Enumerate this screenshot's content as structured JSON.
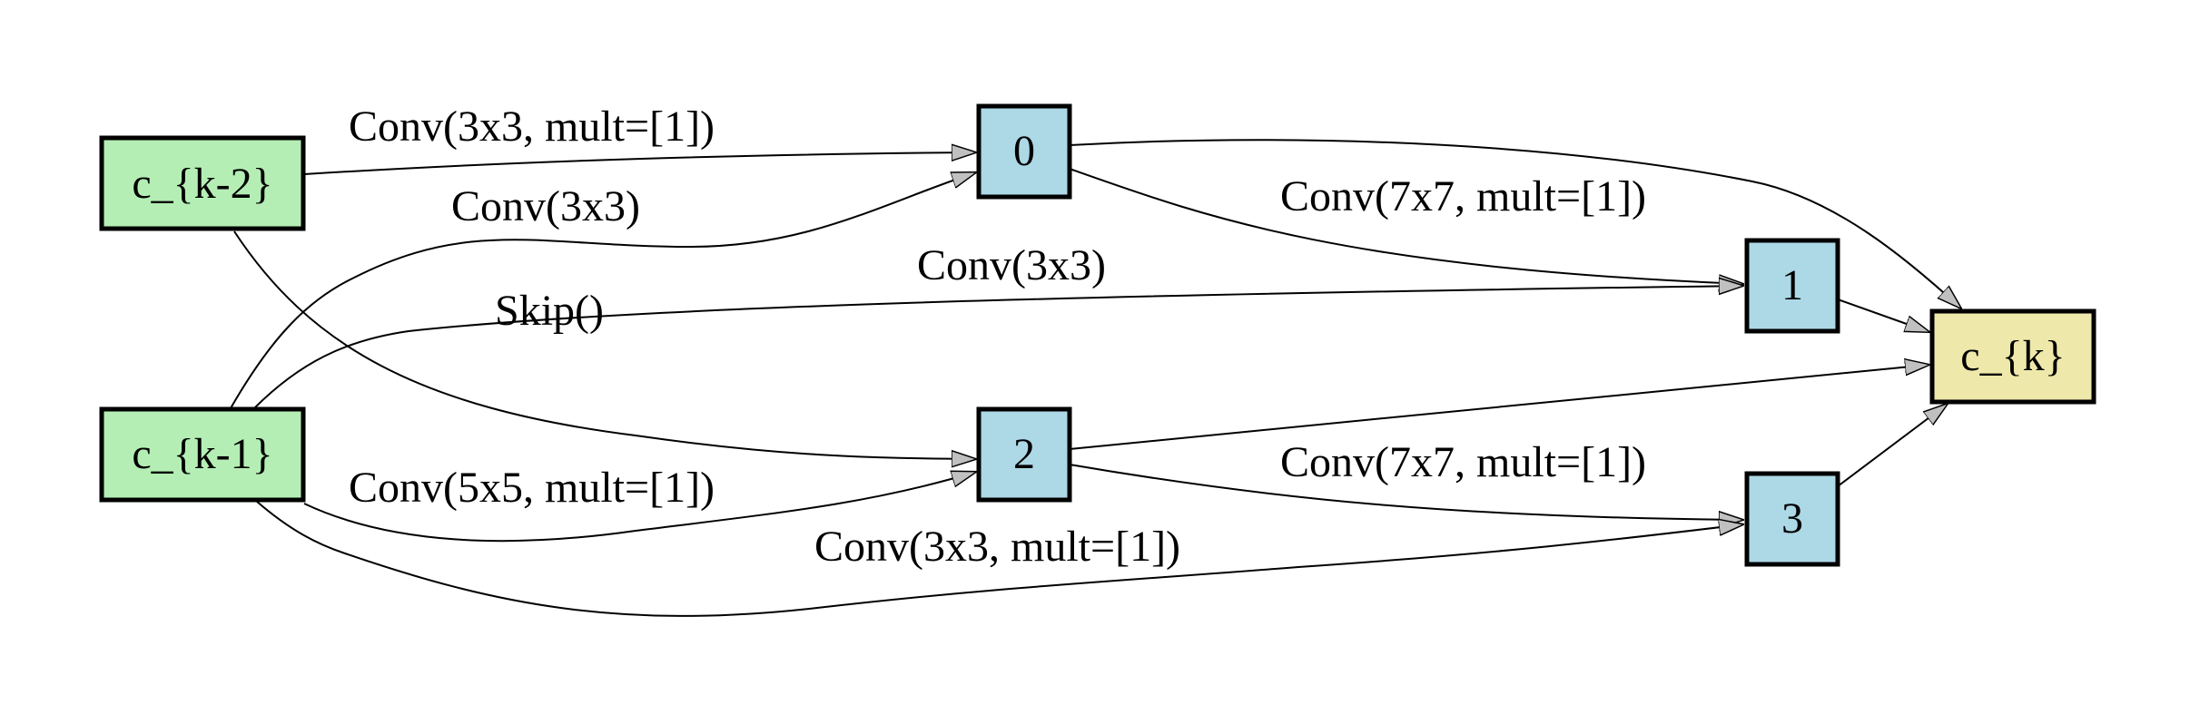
{
  "colors": {
    "input_node": "#b4eeb4",
    "intermediate_node": "#add8e6",
    "output_node": "#eee8aa",
    "arrowhead": "#c0c0c0"
  },
  "nodes": {
    "c_k_minus_2": "c_{k-2}",
    "c_k_minus_1": "c_{k-1}",
    "n0": "0",
    "n1": "1",
    "n2": "2",
    "n3": "3",
    "c_k": "c_{k}"
  },
  "edges": [
    {
      "from": "c_{k-2}",
      "to": "0",
      "label": "Conv(3x3, mult=[1])"
    },
    {
      "from": "c_{k-1}",
      "to": "0",
      "label": "Conv(3x3)"
    },
    {
      "from": "0",
      "to": "1",
      "label": "Conv(7x7, mult=[1])"
    },
    {
      "from": "c_{k-1}",
      "to": "1",
      "label": "Conv(3x3)"
    },
    {
      "from": "c_{k-1}",
      "to": "1",
      "label": "Skip()"
    },
    {
      "from": "c_{k-2}",
      "to": "2",
      "label": ""
    },
    {
      "from": "c_{k-1}",
      "to": "2",
      "label": "Conv(5x5, mult=[1])"
    },
    {
      "from": "2",
      "to": "3",
      "label": "Conv(7x7, mult=[1])"
    },
    {
      "from": "c_{k-1}",
      "to": "3",
      "label": "Conv(3x3, mult=[1])"
    },
    {
      "from": "0",
      "to": "c_{k}",
      "label": ""
    },
    {
      "from": "1",
      "to": "c_{k}",
      "label": ""
    },
    {
      "from": "2",
      "to": "c_{k}",
      "label": ""
    },
    {
      "from": "3",
      "to": "c_{k}",
      "label": ""
    }
  ]
}
